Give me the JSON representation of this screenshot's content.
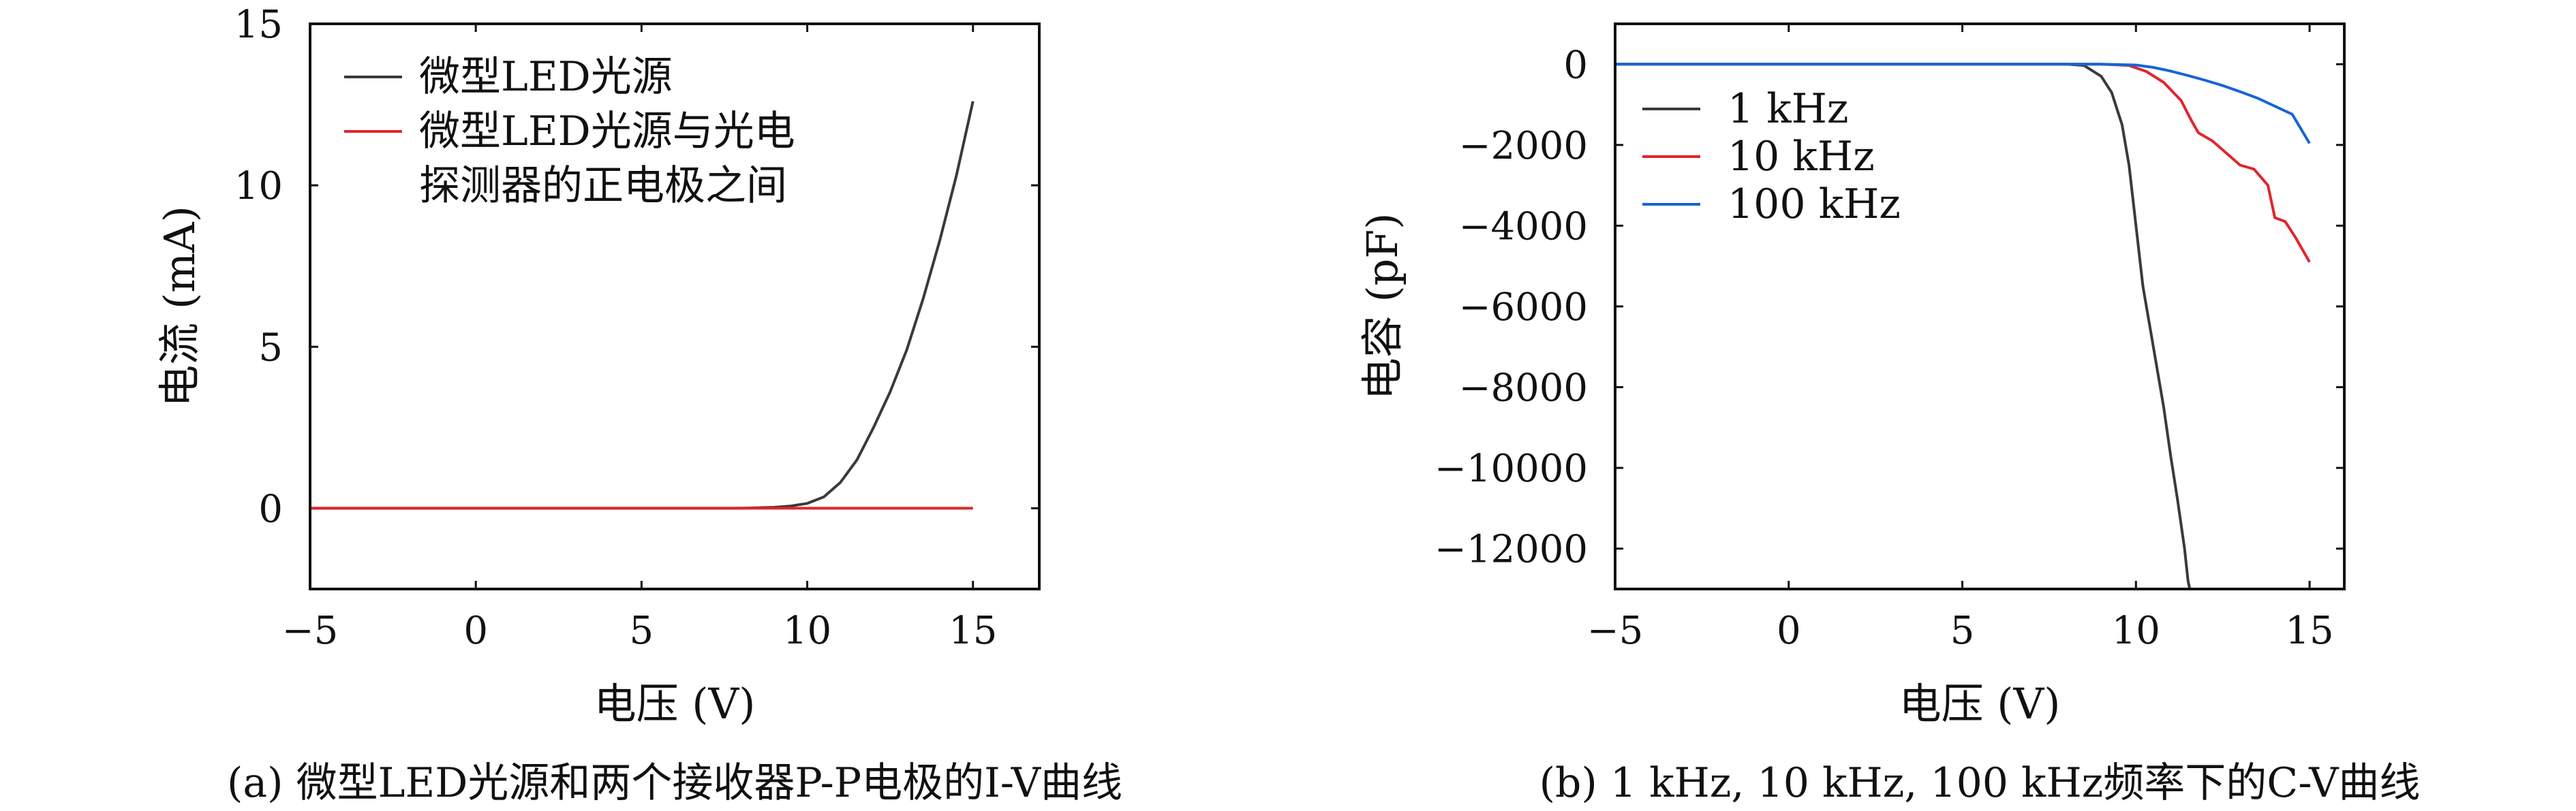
{
  "colors": {
    "black": "#3a3a3a",
    "red": "#e0262b",
    "blue": "#1565d8"
  },
  "chart_data": [
    {
      "type": "line",
      "caption": "(a) 微型LED光源和两个接收器P-P电极的I-V曲线",
      "xlabel": "电压 (V)",
      "ylabel": "电流 (mA)",
      "xlim": [
        -5,
        17
      ],
      "ylim": [
        -2.5,
        15
      ],
      "xticks": [
        -5,
        0,
        5,
        10,
        15
      ],
      "yticks": [
        0,
        5,
        10,
        15
      ],
      "xtick_labels": [
        "−5",
        "0",
        "5",
        "10",
        "15"
      ],
      "ytick_labels": [
        "0",
        "5",
        "10",
        "15"
      ],
      "grid": false,
      "legend_position": "top-left",
      "series": [
        {
          "name": "微型LED光源",
          "color": "black",
          "x": [
            -5,
            0,
            5,
            8,
            9,
            9.5,
            10,
            10.5,
            11,
            11.5,
            12,
            12.5,
            13,
            13.5,
            14,
            14.5,
            15
          ],
          "y": [
            0,
            0,
            0,
            0,
            0.03,
            0.07,
            0.15,
            0.35,
            0.8,
            1.5,
            2.5,
            3.6,
            4.9,
            6.5,
            8.3,
            10.3,
            12.6
          ]
        },
        {
          "name": "微型LED光源与光电探测器的正电极之间",
          "name_lines": [
            "微型LED光源与光电",
            "探测器的正电极之间"
          ],
          "color": "red",
          "x": [
            -5,
            0,
            5,
            10,
            15
          ],
          "y": [
            0,
            0,
            0,
            0,
            0
          ]
        }
      ]
    },
    {
      "type": "line",
      "caption": "(b) 1 kHz, 10 kHz, 100 kHz频率下的C-V曲线",
      "xlabel": "电压 (V)",
      "ylabel": "电容 (pF)",
      "xlim": [
        -5,
        16
      ],
      "ylim": [
        -13000,
        1000
      ],
      "xticks": [
        -5,
        0,
        5,
        10,
        15
      ],
      "yticks": [
        0,
        -2000,
        -4000,
        -6000,
        -8000,
        -10000,
        -12000
      ],
      "xtick_labels": [
        "−5",
        "0",
        "5",
        "10",
        "15"
      ],
      "ytick_labels": [
        "0",
        "−2000",
        "−4000",
        "−6000",
        "−8000",
        "−10000",
        "−12000"
      ],
      "grid": false,
      "legend_position": "top-left",
      "series": [
        {
          "name": "1 kHz",
          "color": "black",
          "x": [
            -5,
            0,
            5,
            7,
            8,
            8.5,
            9,
            9.3,
            9.6,
            9.8,
            10,
            10.2,
            10.5,
            10.8,
            11,
            11.2,
            11.4,
            11.5,
            11.55
          ],
          "y": [
            0,
            0,
            0,
            0,
            0,
            -30,
            -300,
            -700,
            -1500,
            -2500,
            -4000,
            -5500,
            -7000,
            -8500,
            -9700,
            -10800,
            -12000,
            -12800,
            -13000
          ]
        },
        {
          "name": "10 kHz",
          "color": "red",
          "x": [
            -5,
            0,
            5,
            9,
            9.8,
            10.3,
            10.8,
            11.3,
            11.6,
            11.8,
            12.2,
            12.6,
            13,
            13.4,
            13.8,
            14,
            14.3,
            14.6,
            15
          ],
          "y": [
            0,
            0,
            0,
            0,
            -30,
            -180,
            -450,
            -900,
            -1400,
            -1700,
            -1900,
            -2200,
            -2500,
            -2600,
            -3000,
            -3800,
            -3900,
            -4300,
            -4900
          ]
        },
        {
          "name": "100 kHz",
          "color": "blue",
          "x": [
            -5,
            0,
            5,
            9,
            10,
            10.5,
            11,
            11.5,
            12,
            12.5,
            13,
            13.5,
            14,
            14.5,
            15
          ],
          "y": [
            0,
            0,
            0,
            0,
            -20,
            -80,
            -170,
            -280,
            -400,
            -530,
            -680,
            -840,
            -1040,
            -1240,
            -1960
          ]
        }
      ]
    }
  ]
}
